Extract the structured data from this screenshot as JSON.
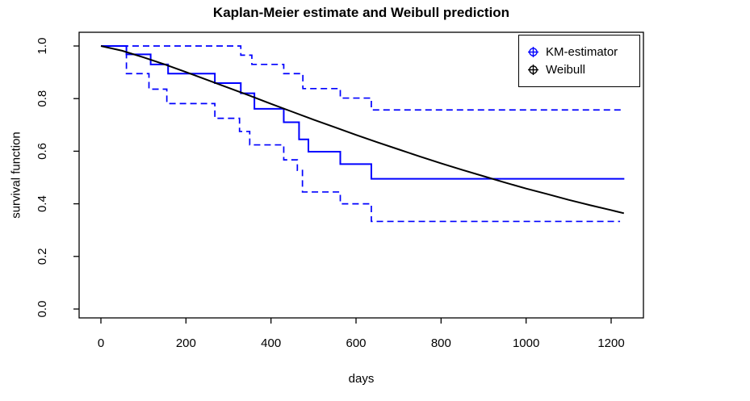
{
  "chart_data": {
    "type": "line",
    "title": "Kaplan-Meier estimate and Weibull prediction",
    "xlabel": "days",
    "ylabel": "survival function",
    "grid": false,
    "x_ticks": [
      0,
      200,
      400,
      600,
      800,
      1000,
      1200
    ],
    "y_ticks": [
      "0.0",
      "0.2",
      "0.4",
      "0.6",
      "0.8",
      "1.0"
    ],
    "xlim": [
      0,
      1230
    ],
    "ylim": [
      0.0,
      1.0
    ],
    "legend": {
      "position": "top-right",
      "entries": [
        {
          "label": "KM-estimator",
          "color": "#0000ff",
          "marker": "circle-plus"
        },
        {
          "label": "Weibull",
          "color": "#000000",
          "marker": "circle-plus"
        }
      ]
    },
    "series": [
      {
        "id": "km-estimator",
        "name": "KM-estimator",
        "type": "step",
        "line": "solid",
        "color": "#0000ff",
        "width": 2,
        "points": [
          [
            0,
            1.0
          ],
          [
            60,
            0.968
          ],
          [
            117,
            0.93
          ],
          [
            158,
            0.895
          ],
          [
            268,
            0.859
          ],
          [
            329,
            0.82
          ],
          [
            361,
            0.761
          ],
          [
            430,
            0.71
          ],
          [
            466,
            0.645
          ],
          [
            488,
            0.598
          ],
          [
            563,
            0.551
          ],
          [
            636,
            0.495
          ],
          [
            1231,
            0.495
          ]
        ]
      },
      {
        "id": "km-ci-upper",
        "name": "KM 95% CI upper",
        "type": "step",
        "line": "dashed",
        "color": "#0000ff",
        "width": 1.7,
        "points": [
          [
            0,
            1.0
          ],
          [
            329,
            0.965
          ],
          [
            355,
            0.93
          ],
          [
            430,
            0.895
          ],
          [
            475,
            0.838
          ],
          [
            563,
            0.802
          ],
          [
            636,
            0.757
          ],
          [
            1231,
            0.757
          ]
        ]
      },
      {
        "id": "km-ci-lower",
        "name": "KM 95% CI lower",
        "type": "step",
        "line": "dashed",
        "color": "#0000ff",
        "width": 1.7,
        "points": [
          [
            0,
            1.0
          ],
          [
            60,
            0.895
          ],
          [
            113,
            0.836
          ],
          [
            155,
            0.781
          ],
          [
            268,
            0.725
          ],
          [
            326,
            0.675
          ],
          [
            350,
            0.624
          ],
          [
            430,
            0.567
          ],
          [
            462,
            0.527
          ],
          [
            474,
            0.445
          ],
          [
            563,
            0.4
          ],
          [
            636,
            0.333
          ],
          [
            1221,
            0.333
          ]
        ]
      },
      {
        "id": "weibull",
        "name": "Weibull",
        "type": "line",
        "line": "solid",
        "color": "#000000",
        "width": 2,
        "points": [
          [
            0,
            1.0
          ],
          [
            50,
            0.982
          ],
          [
            100,
            0.957
          ],
          [
            150,
            0.93
          ],
          [
            200,
            0.901
          ],
          [
            250,
            0.871
          ],
          [
            300,
            0.841
          ],
          [
            350,
            0.811
          ],
          [
            400,
            0.78
          ],
          [
            450,
            0.75
          ],
          [
            500,
            0.72
          ],
          [
            550,
            0.691
          ],
          [
            600,
            0.662
          ],
          [
            650,
            0.634
          ],
          [
            700,
            0.607
          ],
          [
            750,
            0.58
          ],
          [
            800,
            0.554
          ],
          [
            850,
            0.529
          ],
          [
            900,
            0.505
          ],
          [
            950,
            0.481
          ],
          [
            1000,
            0.458
          ],
          [
            1050,
            0.437
          ],
          [
            1100,
            0.415
          ],
          [
            1150,
            0.395
          ],
          [
            1200,
            0.376
          ],
          [
            1230,
            0.364
          ]
        ]
      }
    ]
  }
}
